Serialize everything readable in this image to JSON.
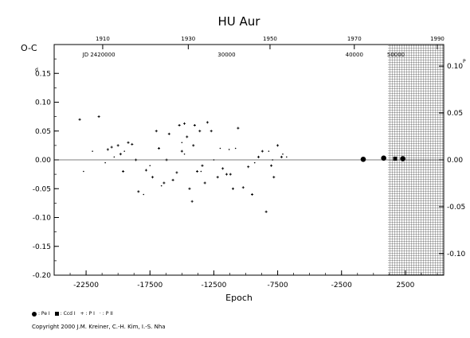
{
  "chart_data": {
    "type": "scatter",
    "title": "HU Aur",
    "xlabel": "Epoch",
    "ylabel": "O-C",
    "xlim": [
      -25000,
      5500
    ],
    "ylim": [
      -0.2,
      0.2
    ],
    "x_ticks": [
      -22500,
      -17500,
      -12500,
      -7500,
      -2500,
      2500
    ],
    "x_tick_labels": [
      "-22500",
      "-17500",
      "-12500",
      "-7500",
      "-2500",
      "2500"
    ],
    "y_ticks": [
      -0.2,
      -0.15,
      -0.1,
      -0.05,
      0.0,
      0.05,
      0.1,
      0.15
    ],
    "y_tick_labels": [
      "-0.20",
      "-0.15",
      "-0.10",
      "-0.05",
      "0.00",
      "0.05",
      "0.10",
      "0.15"
    ],
    "y_top_label": "0.15",
    "y_top_unit": "d",
    "right_y_ticks": [
      -0.1,
      -0.05,
      0.0,
      0.05,
      0.1
    ],
    "right_y_tick_labels": [
      "-0.10",
      "-0.05",
      "0.00",
      "0.05",
      "0.10"
    ],
    "right_top_unit": "P",
    "year_ticks": [
      {
        "epoch": -21200,
        "label": "1910"
      },
      {
        "epoch": -14500,
        "label": "1930"
      },
      {
        "epoch": -8100,
        "label": "1950"
      },
      {
        "epoch": -1500,
        "label": "1970"
      },
      {
        "epoch": 5000,
        "label": "1990"
      }
    ],
    "jd_ticks": [
      {
        "epoch": -21500,
        "label": "JD 2420000"
      },
      {
        "epoch": -11500,
        "label": "30000"
      },
      {
        "epoch": -1500,
        "label": "40000"
      },
      {
        "epoch": 8500,
        "label": "50000"
      }
    ],
    "hatched_region_start": 2500,
    "series": [
      {
        "name": "P",
        "marker": "small-cross",
        "points": [
          [
            -23000,
            0.07
          ],
          [
            -21500,
            0.075
          ],
          [
            -20800,
            0.018
          ],
          [
            -20500,
            0.022
          ],
          [
            -20000,
            0.025
          ],
          [
            -19600,
            -0.02
          ],
          [
            -19200,
            0.03
          ],
          [
            -18900,
            0.027
          ],
          [
            -18600,
            0.0
          ],
          [
            -18400,
            -0.055
          ],
          [
            -17800,
            -0.018
          ],
          [
            -17000,
            0.05
          ],
          [
            -16800,
            0.02
          ],
          [
            -16400,
            -0.04
          ],
          [
            -16000,
            0.045
          ],
          [
            -15700,
            -0.035
          ],
          [
            -15400,
            -0.022
          ],
          [
            -15200,
            0.06
          ],
          [
            -15000,
            0.015
          ],
          [
            -14800,
            0.063
          ],
          [
            -14600,
            0.04
          ],
          [
            -14400,
            -0.05
          ],
          [
            -14200,
            -0.072
          ],
          [
            -14000,
            0.06
          ],
          [
            -13800,
            -0.02
          ],
          [
            -13600,
            0.05
          ],
          [
            -13400,
            -0.01
          ],
          [
            -13000,
            0.065
          ],
          [
            -12700,
            0.05
          ],
          [
            -12200,
            -0.03
          ],
          [
            -11800,
            -0.015
          ],
          [
            -11500,
            -0.025
          ],
          [
            -11000,
            -0.05
          ],
          [
            -10600,
            0.055
          ],
          [
            -10200,
            -0.048
          ],
          [
            -9800,
            -0.012
          ],
          [
            -9500,
            -0.06
          ],
          [
            -9000,
            0.005
          ],
          [
            -8700,
            0.015
          ],
          [
            -8400,
            -0.09
          ],
          [
            -8000,
            -0.01
          ],
          [
            -7800,
            -0.03
          ],
          [
            -7500,
            0.025
          ],
          [
            -7200,
            0.005
          ],
          [
            -11200,
            -0.025
          ],
          [
            -16200,
            0.0
          ],
          [
            -17300,
            -0.03
          ],
          [
            -19800,
            0.01
          ],
          [
            -14100,
            0.025
          ],
          [
            -13200,
            -0.04
          ]
        ]
      },
      {
        "name": "P II",
        "marker": "tiny-dot",
        "points": [
          [
            -22700,
            -0.02
          ],
          [
            -22000,
            0.015
          ],
          [
            -21000,
            -0.005
          ],
          [
            -20300,
            0.005
          ],
          [
            -18000,
            -0.06
          ],
          [
            -17500,
            -0.01
          ],
          [
            -15000,
            0.03
          ],
          [
            -13500,
            -0.02
          ],
          [
            -12000,
            0.02
          ],
          [
            -11300,
            0.018
          ],
          [
            -10800,
            0.02
          ],
          [
            -9300,
            -0.005
          ],
          [
            -8200,
            0.015
          ],
          [
            -7900,
            0.0
          ],
          [
            -7100,
            0.01
          ],
          [
            -6800,
            0.005
          ],
          [
            -19500,
            0.015
          ],
          [
            -16600,
            -0.045
          ],
          [
            -14800,
            0.01
          ],
          [
            -12500,
            0.0
          ]
        ]
      },
      {
        "name": "Pe I",
        "marker": "filled-circle",
        "points": [
          [
            -800,
            0.001
          ],
          [
            800,
            0.003
          ],
          [
            2300,
            0.002
          ]
        ]
      },
      {
        "name": "Ccd I",
        "marker": "filled-square",
        "points": [
          [
            1700,
            0.002
          ]
        ]
      }
    ],
    "legend": [
      "Pe I",
      "Ccd I",
      "P I",
      "P II"
    ],
    "legend_placement": "bottom-left",
    "grid": false
  },
  "footer": {
    "copyright": "Copyright 2000 J.M. Kreiner, C.-H. Kim, I.-S. Nha"
  },
  "legend_labels": {
    "pe": ": Pe I",
    "ccd": ": Ccd I",
    "pi": ": P I",
    "pii": ": P II"
  }
}
